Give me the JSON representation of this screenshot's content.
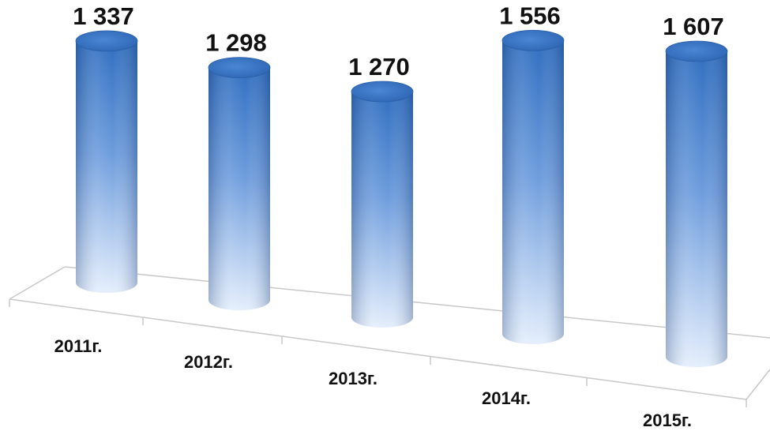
{
  "chart_data": {
    "type": "bar",
    "style": "3d-cylinder",
    "categories": [
      "2011г.",
      "2012г.",
      "2013г.",
      "2014г.",
      "2015г."
    ],
    "values": [
      1337,
      1298,
      1270,
      1556,
      1607
    ],
    "value_labels": [
      "1 337",
      "1 298",
      "1 270",
      "1 556",
      "1 607"
    ],
    "title": "",
    "xlabel": "",
    "ylabel": "",
    "legend": "none",
    "grid": false,
    "colors": {
      "bar_top": "#2e6fbf",
      "bar_body_dark": "#3a78c8",
      "bar_body_light": "#dde9fb",
      "floor_line": "#c8c8c8"
    }
  }
}
